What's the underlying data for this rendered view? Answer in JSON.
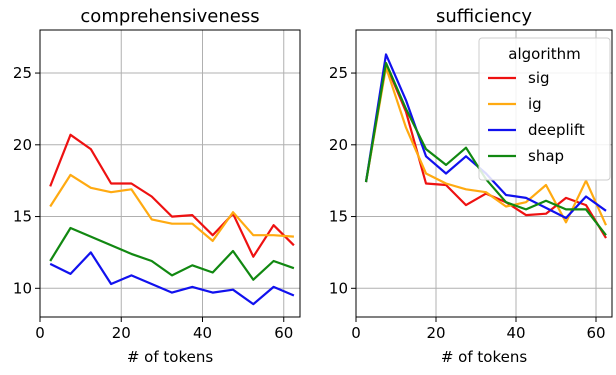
{
  "chart_data": [
    {
      "type": "line",
      "title": "comprehensiveness",
      "xlabel": "# of tokens",
      "ylabel": "",
      "xlim": [
        0,
        64
      ],
      "ylim": [
        8,
        28
      ],
      "xticks": [
        0,
        20,
        40,
        60
      ],
      "yticks": [
        10,
        15,
        20,
        25
      ],
      "grid": true,
      "x": [
        2.5,
        7.5,
        12.5,
        17.5,
        22.5,
        27.5,
        32.5,
        37.5,
        42.5,
        47.5,
        52.5,
        57.5,
        62.5
      ],
      "series": [
        {
          "name": "sig",
          "values": [
            17.1,
            20.7,
            19.7,
            17.3,
            17.3,
            16.4,
            15.0,
            15.1,
            13.7,
            15.2,
            12.2,
            14.4,
            13.0
          ]
        },
        {
          "name": "ig",
          "values": [
            15.7,
            17.9,
            17.0,
            16.7,
            16.9,
            14.8,
            14.5,
            14.5,
            13.3,
            15.3,
            13.7,
            13.7,
            13.6
          ]
        },
        {
          "name": "deeplift",
          "values": [
            11.7,
            11.0,
            12.5,
            10.3,
            10.9,
            10.3,
            9.7,
            10.1,
            9.7,
            9.9,
            8.9,
            10.1,
            9.5
          ]
        },
        {
          "name": "shap",
          "values": [
            11.9,
            14.2,
            13.6,
            13.0,
            12.4,
            11.9,
            10.9,
            11.6,
            11.1,
            12.6,
            10.6,
            11.9,
            11.4
          ]
        }
      ]
    },
    {
      "type": "line",
      "title": "sufficiency",
      "xlabel": "# of tokens",
      "ylabel": "",
      "xlim": [
        0,
        64
      ],
      "ylim": [
        8,
        28
      ],
      "xticks": [
        0,
        20,
        40,
        60
      ],
      "yticks": [
        10,
        15,
        20,
        25
      ],
      "grid": true,
      "x": [
        2.5,
        7.5,
        12.5,
        17.5,
        22.5,
        27.5,
        32.5,
        37.5,
        42.5,
        47.5,
        52.5,
        57.5,
        62.5
      ],
      "series": [
        {
          "name": "sig",
          "values": [
            17.4,
            25.6,
            22.3,
            17.3,
            17.2,
            15.8,
            16.6,
            16.0,
            15.1,
            15.2,
            16.3,
            15.8,
            13.5
          ]
        },
        {
          "name": "ig",
          "values": [
            17.4,
            25.4,
            21.2,
            18.0,
            17.3,
            16.9,
            16.7,
            15.7,
            16.0,
            17.2,
            14.6,
            17.5,
            14.4
          ]
        },
        {
          "name": "deeplift",
          "values": [
            17.4,
            26.3,
            23.1,
            19.2,
            18.0,
            19.2,
            18.0,
            16.5,
            16.3,
            15.6,
            14.9,
            16.4,
            15.4
          ]
        },
        {
          "name": "shap",
          "values": [
            17.4,
            25.7,
            22.5,
            19.7,
            18.6,
            19.8,
            17.6,
            16.0,
            15.5,
            16.1,
            15.5,
            15.5,
            13.7
          ]
        }
      ],
      "legend": {
        "title": "algorithm",
        "placement": "top-right"
      }
    }
  ],
  "colors": {
    "sig": "#ee1111",
    "ig": "#ffaa11",
    "deeplift": "#1111ee",
    "shap": "#118811",
    "grid": "#b0b0b0",
    "axes": "#000000"
  }
}
